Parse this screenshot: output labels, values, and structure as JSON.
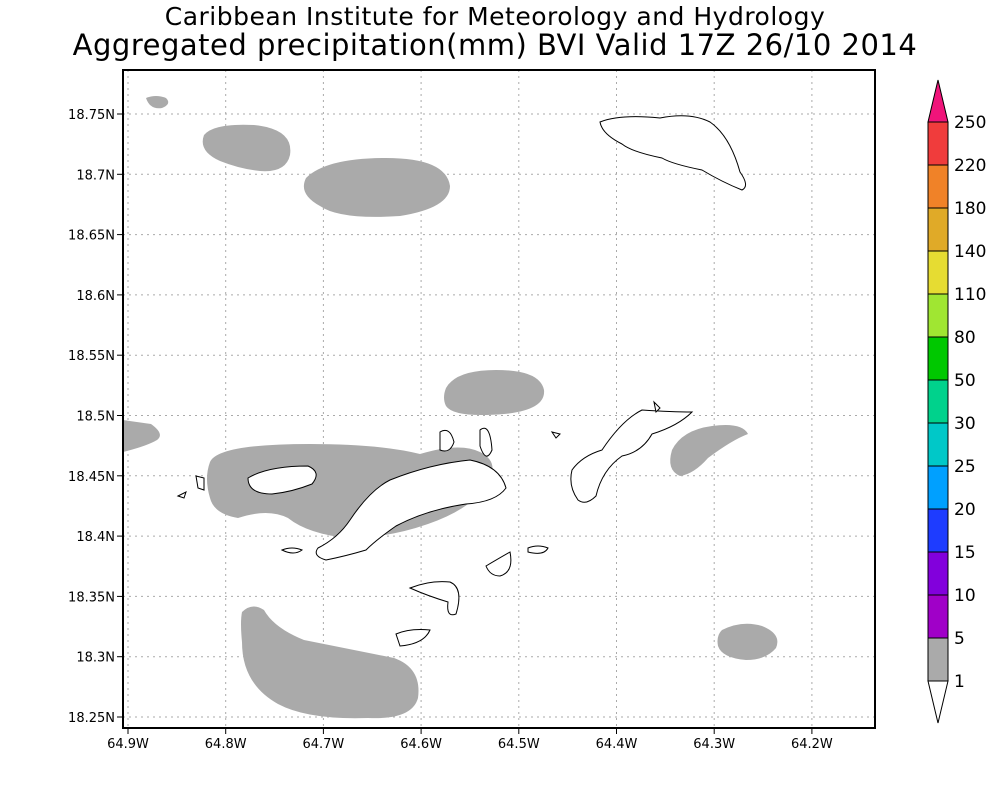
{
  "header": {
    "title": "Caribbean Institute for Meteorology and Hydrology",
    "subtitle": "Aggregated precipitation(mm) BVI Valid 17Z 26/10 2014"
  },
  "map": {
    "lon_labels": [
      "64.9W",
      "64.8W",
      "64.7W",
      "64.6W",
      "64.5W",
      "64.4W",
      "64.3W",
      "64.2W"
    ],
    "lon_values": [
      -64.9,
      -64.8,
      -64.7,
      -64.6,
      -64.5,
      -64.4,
      -64.3,
      -64.2
    ],
    "lat_labels": [
      "18.75N",
      "18.7N",
      "18.65N",
      "18.6N",
      "18.55N",
      "18.5N",
      "18.45N",
      "18.4N",
      "18.35N",
      "18.3N",
      "18.25N"
    ],
    "lat_values": [
      18.75,
      18.7,
      18.65,
      18.6,
      18.55,
      18.5,
      18.45,
      18.4,
      18.35,
      18.3,
      18.25
    ],
    "precip_color": "#aaaaaa"
  },
  "colorbar": {
    "labels": [
      "250",
      "220",
      "180",
      "140",
      "110",
      "80",
      "50",
      "30",
      "25",
      "20",
      "15",
      "10",
      "5",
      "1"
    ],
    "colors": [
      "#f03c3c",
      "#f08228",
      "#e0aa28",
      "#e6dc32",
      "#a0e632",
      "#00c800",
      "#00d28c",
      "#00c8c8",
      "#00a0ff",
      "#1e3cff",
      "#8200dc",
      "#a000c8",
      "#aaaaaa"
    ],
    "top_arrow_color": "#f0147a",
    "bottom_arrow_color": "#ffffff"
  }
}
